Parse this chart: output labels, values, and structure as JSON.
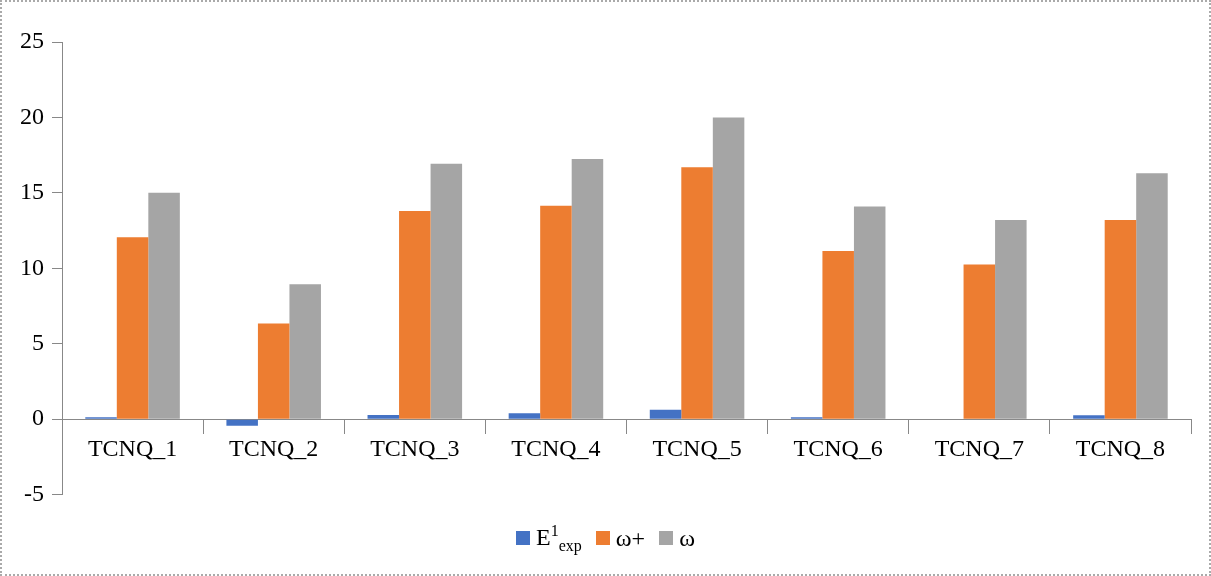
{
  "chart_data": {
    "type": "bar",
    "categories": [
      "TCNQ_1",
      "TCNQ_2",
      "TCNQ_3",
      "TCNQ_4",
      "TCNQ_5",
      "TCNQ_6",
      "TCNQ_7",
      "TCNQ_8"
    ],
    "series": [
      {
        "name": "E$^{1}$$_{exp}$",
        "color": "#4472c4",
        "values": [
          0.12,
          -0.44,
          0.27,
          0.39,
          0.63,
          0.13,
          0.0,
          0.26
        ]
      },
      {
        "name": "ω+",
        "color": "#ed7d31",
        "values": [
          12.06,
          6.34,
          13.8,
          14.15,
          16.7,
          11.15,
          10.25,
          13.2
        ]
      },
      {
        "name": "ω",
        "color": "#a5a5a5",
        "values": [
          15.0,
          8.94,
          16.93,
          17.25,
          20.0,
          14.1,
          13.2,
          16.3
        ]
      }
    ],
    "ylim": [
      -5,
      25
    ],
    "yticks": [
      -5,
      0,
      5,
      10,
      15,
      20,
      25
    ],
    "grid": false,
    "legend": "bottom"
  }
}
